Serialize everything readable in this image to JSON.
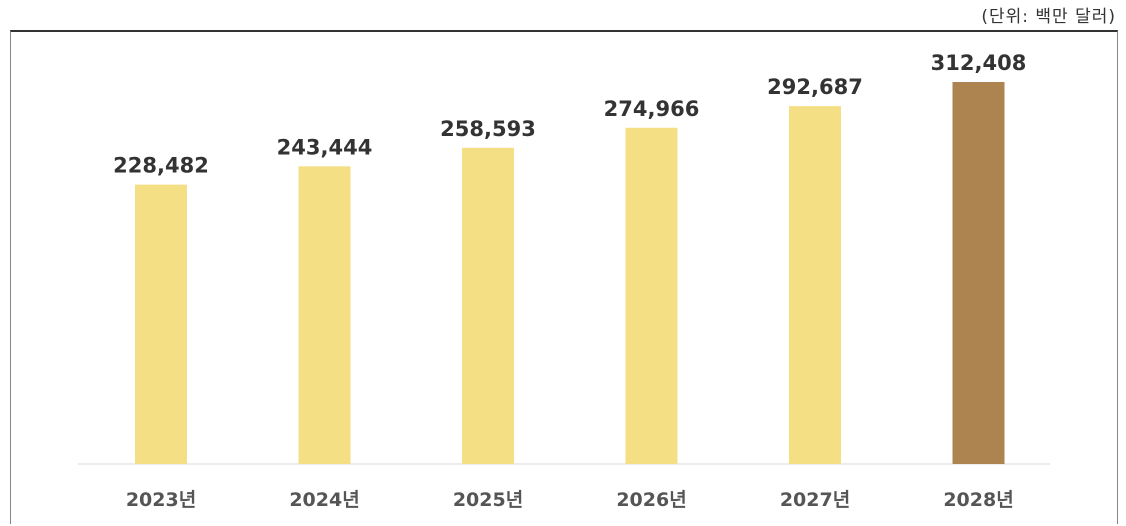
{
  "unit_label": "(단위: 백만 달러)",
  "chart_data": {
    "type": "bar",
    "title": "",
    "xlabel": "",
    "ylabel": "",
    "categories": [
      "2023년",
      "2024년",
      "2025년",
      "2026년",
      "2027년",
      "2028년"
    ],
    "values": [
      228482,
      243444,
      258593,
      274966,
      292687,
      312408
    ],
    "value_labels": [
      "228,482",
      "243,444",
      "258,593",
      "274,966",
      "292,687",
      "312,408"
    ],
    "colors": [
      "#F5DF85",
      "#F5DF85",
      "#F5DF85",
      "#F5DF85",
      "#F5DF85",
      "#AD8450"
    ],
    "ylim": [
      0,
      312408
    ],
    "grid": false,
    "legend": "none"
  }
}
